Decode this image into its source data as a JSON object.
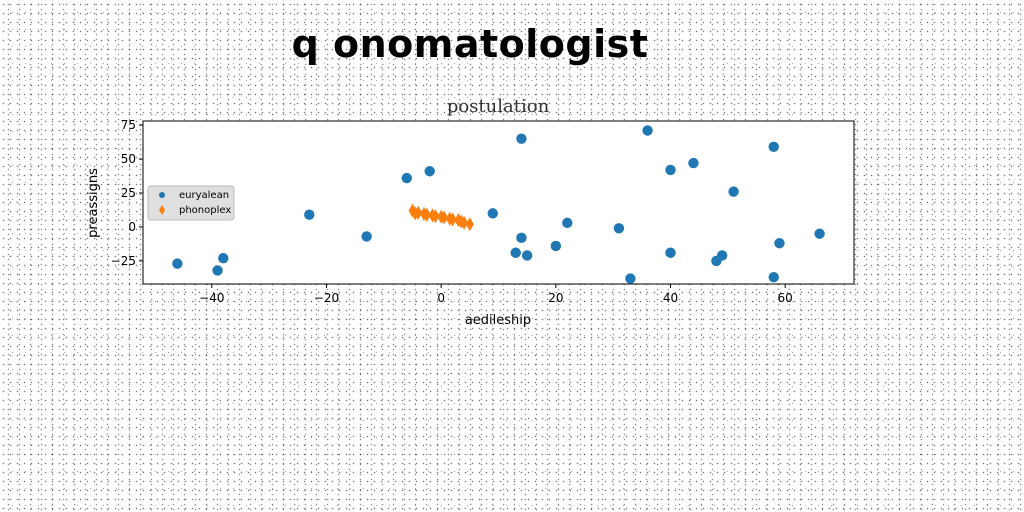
{
  "figure": {
    "suptitle": "q onomatologist"
  },
  "chart_data": {
    "type": "scatter",
    "title": "postulation",
    "xlabel": "aedileship",
    "ylabel": "preassigns",
    "xlim": [
      -52,
      72
    ],
    "ylim": [
      -42,
      78
    ],
    "xticks": [
      -40,
      -20,
      0,
      20,
      40,
      60
    ],
    "yticks": [
      -25,
      0,
      25,
      50,
      75
    ],
    "grid": false,
    "legend_position": "center-left",
    "series": [
      {
        "name": "euryalean",
        "marker": "circle",
        "color": "#1f77b4",
        "points": [
          [
            -46,
            -27
          ],
          [
            -39,
            -32
          ],
          [
            -38,
            -23
          ],
          [
            -23,
            9
          ],
          [
            -13,
            -7
          ],
          [
            -6,
            36
          ],
          [
            -2,
            41
          ],
          [
            9,
            10
          ],
          [
            13,
            -19
          ],
          [
            14,
            -8
          ],
          [
            14,
            65
          ],
          [
            15,
            -21
          ],
          [
            20,
            -14
          ],
          [
            22,
            3
          ],
          [
            31,
            -1
          ],
          [
            33,
            -38
          ],
          [
            36,
            71
          ],
          [
            40,
            42
          ],
          [
            40,
            -19
          ],
          [
            44,
            47
          ],
          [
            48,
            -25
          ],
          [
            49,
            -21
          ],
          [
            51,
            26
          ],
          [
            58,
            59
          ],
          [
            58,
            -37
          ],
          [
            59,
            -12
          ],
          [
            66,
            -5
          ]
        ]
      },
      {
        "name": "phonoplex",
        "marker": "thin-diamond",
        "color": "#ff7f0e",
        "points": [
          [
            -5,
            12
          ],
          [
            -4.5,
            10
          ],
          [
            -4,
            10.5
          ],
          [
            -3,
            9.5
          ],
          [
            -2.5,
            9
          ],
          [
            -1.5,
            8.5
          ],
          [
            -1,
            8
          ],
          [
            0,
            7.5
          ],
          [
            0.5,
            7
          ],
          [
            1.5,
            6
          ],
          [
            2,
            5.5
          ],
          [
            3,
            5
          ],
          [
            3.5,
            4
          ],
          [
            4,
            3
          ],
          [
            5,
            2
          ]
        ]
      }
    ]
  }
}
